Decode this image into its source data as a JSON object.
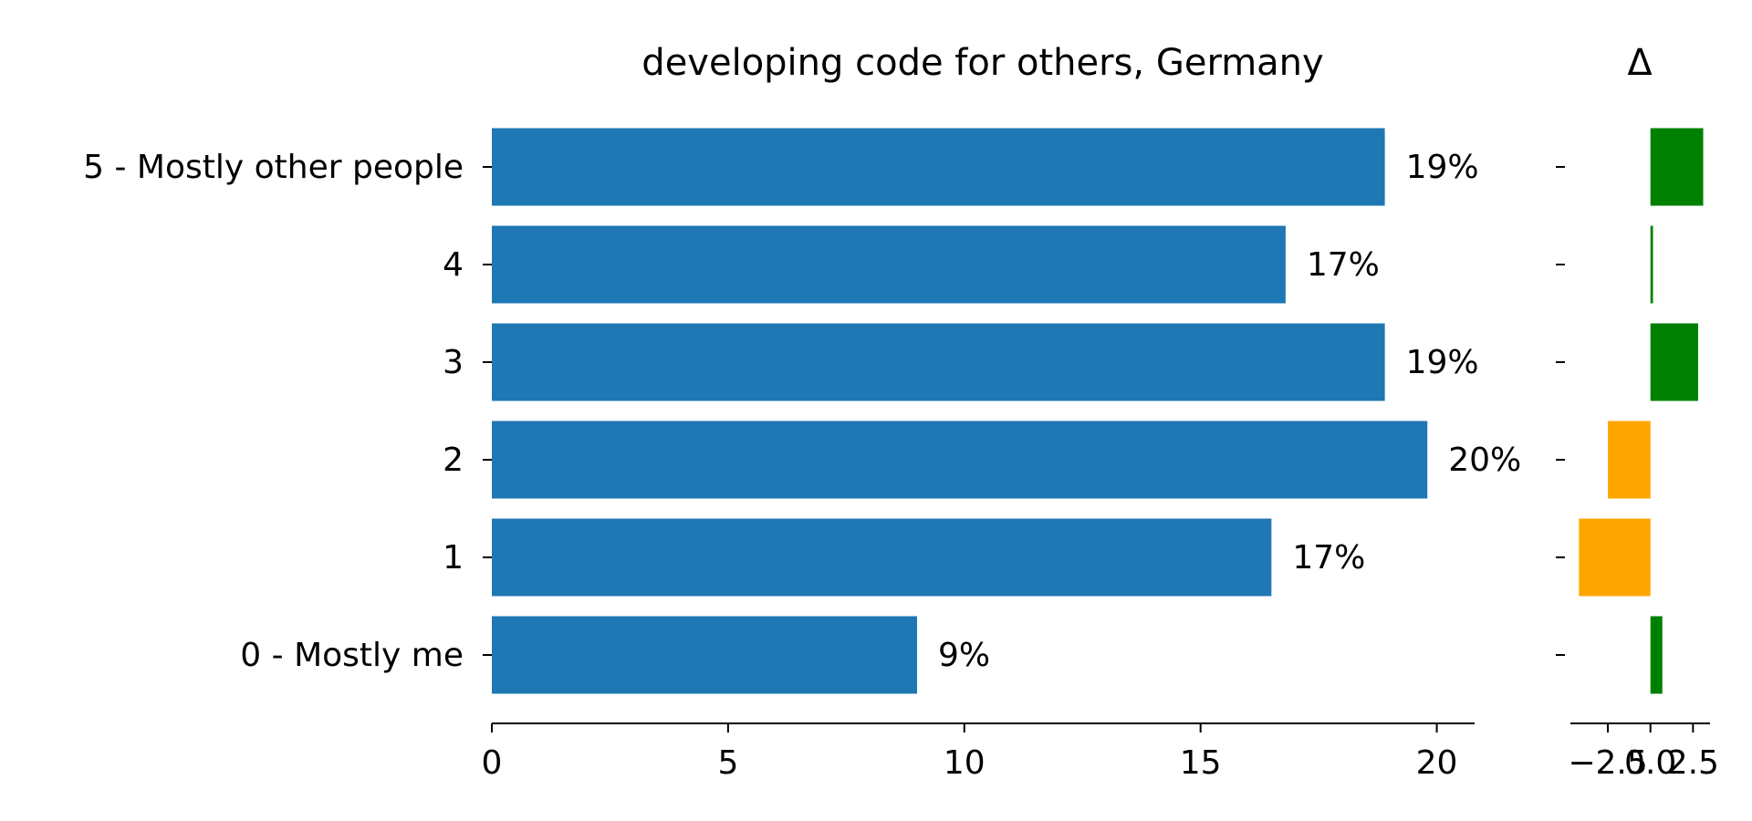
{
  "chart_data": [
    {
      "type": "bar",
      "orientation": "horizontal",
      "title": "developing code for others, Germany",
      "categories": [
        "5 - Mostly other people",
        "4",
        "3",
        "2",
        "1",
        "0 - Mostly me"
      ],
      "values": [
        18.9,
        16.8,
        18.9,
        19.8,
        16.5,
        9.0
      ],
      "data_labels": [
        "19%",
        "17%",
        "19%",
        "20%",
        "17%",
        "9%"
      ],
      "xlim": [
        0,
        20.8
      ],
      "xticks": [
        0,
        5,
        10,
        15,
        20
      ],
      "xtick_labels": [
        "0",
        "5",
        "10",
        "15",
        "20"
      ],
      "bar_color": "#1f77b4",
      "grid": false
    },
    {
      "type": "bar",
      "orientation": "horizontal",
      "title": "Δ",
      "categories": [
        "5 - Mostly other people",
        "4",
        "3",
        "2",
        "1",
        "0 - Mostly me"
      ],
      "values": [
        3.1,
        0.15,
        2.8,
        -2.5,
        -4.2,
        0.7
      ],
      "xlim": [
        -4.7,
        3.5
      ],
      "xticks": [
        -2.5,
        0.0,
        2.5
      ],
      "xtick_labels": [
        "−2.5",
        "0.0",
        "2.5"
      ],
      "positive_color": "#008000",
      "negative_color": "#ffa500",
      "grid": false
    }
  ]
}
